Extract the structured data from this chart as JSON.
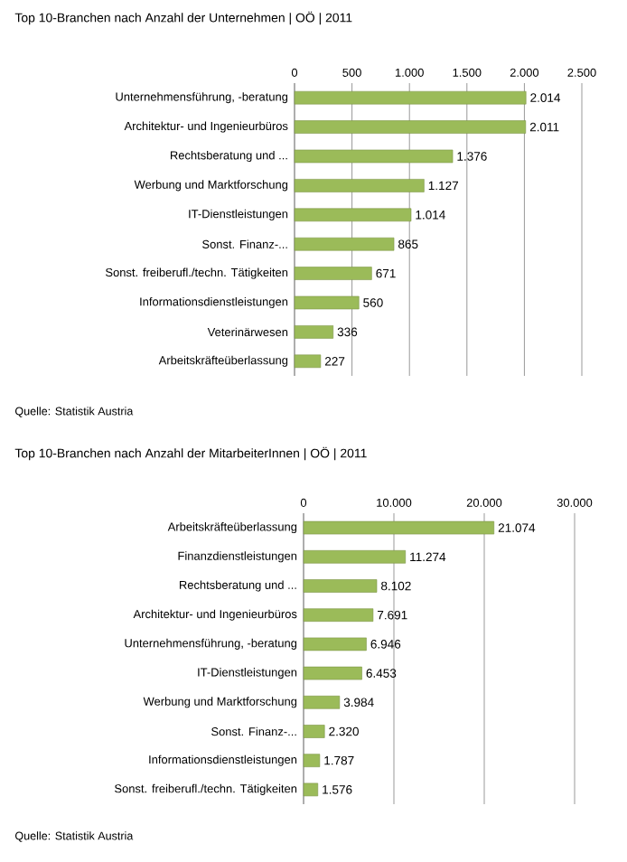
{
  "chart_data": [
    {
      "type": "bar",
      "orientation": "horizontal",
      "title": "Top 10-Branchen nach Anzahl der Unternehmen | OÖ | 2011",
      "categories": [
        "Unternehmensführung, -beratung",
        "Architektur- und Ingenieurbüros",
        "Rechtsberatung und ...",
        "Werbung und Marktforschung",
        "IT-Dienstleistungen",
        "Sonst. Finanz-...",
        "Sonst. freiberufl./techn. Tätigkeiten",
        "Informationsdienstleistungen",
        "Veterinärwesen",
        "Arbeitskräfteüberlassung"
      ],
      "values": [
        2014,
        2011,
        1376,
        1127,
        1014,
        865,
        671,
        560,
        336,
        227
      ],
      "value_labels": [
        "2.014",
        "2.011",
        "1.376",
        "1.127",
        "1.014",
        "865",
        "671",
        "560",
        "336",
        "227"
      ],
      "color": "#9bbb59",
      "xlim": [
        0,
        2500
      ],
      "xticks": [
        0,
        500,
        {
          "value": 1000,
          "label": "1.000"
        },
        {
          "value": 1500,
          "label": "1.500"
        },
        {
          "value": 2000,
          "label": "2.000"
        },
        {
          "value": 2500,
          "label": "2.500"
        }
      ],
      "grid": "x",
      "annotations": [
        "Quelle: Statistik Austria"
      ]
    },
    {
      "type": "bar",
      "orientation": "horizontal",
      "title": "Top 10-Branchen nach Anzahl der MitarbeiterInnen | OÖ | 2011",
      "categories": [
        "Arbeitskräfteüberlassung",
        "Finanzdienstleistungen",
        "Rechtsberatung und ...",
        "Architektur- und Ingenieurbüros",
        "Unternehmensführung, -beratung",
        "IT-Dienstleistungen",
        "Werbung und Marktforschung",
        "Sonst. Finanz-...",
        "Informationsdienstleistungen",
        "Sonst. freiberufl./techn. Tätigkeiten"
      ],
      "values": [
        21074,
        11274,
        8102,
        7691,
        6946,
        6453,
        3984,
        2320,
        1787,
        1576
      ],
      "value_labels": [
        "21.074",
        "11.274",
        "8.102",
        "7.691",
        "6.946",
        "6.453",
        "3.984",
        "2.320",
        "1.787",
        "1.576"
      ],
      "color": "#9bbb59",
      "xlim": [
        0,
        30000
      ],
      "xticks": [
        0,
        {
          "value": 10000,
          "label": "10.000"
        },
        {
          "value": 20000,
          "label": "20.000"
        },
        {
          "value": 30000,
          "label": "30.000"
        }
      ],
      "grid": "x",
      "annotations": [
        "Quelle: Statistik Austria"
      ]
    }
  ]
}
